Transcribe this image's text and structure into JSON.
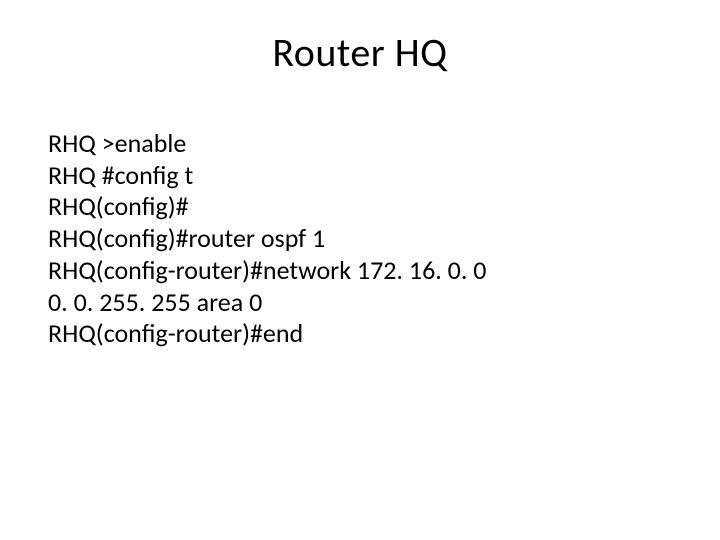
{
  "background_color": "#ffffff",
  "text_color": "#000000",
  "title": {
    "text": "Router HQ",
    "fontsize": 40
  },
  "body": {
    "fontsize": 26,
    "lines": [
      "RHQ >enable",
      "RHQ #config t",
      "RHQ(config)#",
      "RHQ(config)#router ospf 1",
      "RHQ(config-router)#network 172. 16. 0. 0",
      "0. 0. 255. 255 area 0",
      "RHQ(config-router)#end"
    ]
  }
}
